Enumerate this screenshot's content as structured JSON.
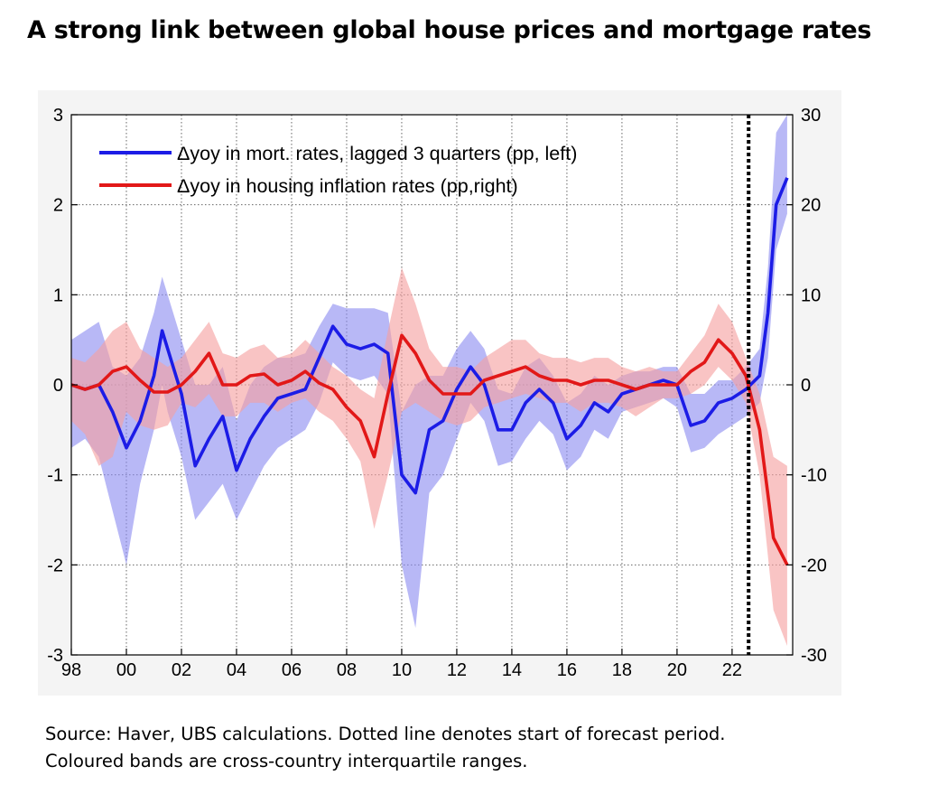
{
  "header": {
    "title": "A strong link between global house prices and mortgage rates"
  },
  "footer": {
    "source_line1": "Source: Haver, UBS calculations. Dotted line denotes start of forecast period.",
    "source_line2": "Coloured bands are cross-country interquartile ranges."
  },
  "chart_data": {
    "type": "line",
    "title": "A strong link between global house prices and mortgage rates",
    "x_tick_labels": [
      "98",
      "00",
      "02",
      "04",
      "06",
      "08",
      "10",
      "12",
      "14",
      "16",
      "18",
      "20",
      "22"
    ],
    "x_ticks": [
      1998,
      2000,
      2002,
      2004,
      2006,
      2008,
      2010,
      2012,
      2014,
      2016,
      2018,
      2020,
      2022
    ],
    "xlim": [
      1998,
      2024.2
    ],
    "y_left": {
      "lim": [
        -3,
        3
      ],
      "ticks": [
        -3,
        -2,
        -1,
        0,
        1,
        2,
        3
      ],
      "tick_labels": [
        "-3",
        "-2",
        "-1",
        "0",
        "1",
        "2",
        "3"
      ]
    },
    "y_right": {
      "lim": [
        -30,
        30
      ],
      "ticks": [
        -30,
        -20,
        -10,
        0,
        10,
        20,
        30
      ],
      "tick_labels": [
        "-30",
        "-20",
        "-10",
        "0",
        "10",
        "20",
        "30"
      ]
    },
    "grid": true,
    "legend_position": "top-left",
    "forecast_start_x": 2022.6,
    "series": [
      {
        "name": "Δyoy in mort. rates, lagged 3 quarters (pp, left)",
        "axis": "left",
        "color": "#1c1ce6",
        "band_color": "#8c8cf0",
        "x": [
          1998,
          1998.5,
          1999,
          1999.5,
          2000,
          2000.5,
          2001,
          2001.3,
          2001.5,
          2002,
          2002.5,
          2003,
          2003.5,
          2004,
          2004.5,
          2005,
          2005.5,
          2006,
          2006.5,
          2007,
          2007.5,
          2008,
          2008.5,
          2009,
          2009.5,
          2010,
          2010.5,
          2011,
          2011.5,
          2012,
          2012.5,
          2013,
          2013.5,
          2014,
          2014.5,
          2015,
          2015.5,
          2016,
          2016.5,
          2017,
          2017.5,
          2018,
          2018.5,
          2019,
          2019.5,
          2020,
          2020.5,
          2021,
          2021.5,
          2022,
          2022.5,
          2023,
          2023.3,
          2023.6,
          2024
        ],
        "y": [
          0.0,
          -0.05,
          0.0,
          -0.3,
          -0.7,
          -0.4,
          0.1,
          0.6,
          0.4,
          -0.1,
          -0.9,
          -0.6,
          -0.35,
          -0.95,
          -0.6,
          -0.35,
          -0.15,
          -0.1,
          -0.05,
          0.3,
          0.65,
          0.45,
          0.4,
          0.45,
          0.35,
          -1.0,
          -1.2,
          -0.5,
          -0.4,
          -0.05,
          0.2,
          0.0,
          -0.5,
          -0.5,
          -0.2,
          -0.05,
          -0.2,
          -0.6,
          -0.45,
          -0.2,
          -0.3,
          -0.1,
          -0.05,
          0.0,
          0.05,
          0.0,
          -0.45,
          -0.4,
          -0.2,
          -0.15,
          -0.05,
          0.1,
          0.8,
          2.0,
          2.3
        ],
        "band_low": [
          -0.7,
          -0.6,
          -0.8,
          -1.4,
          -2.0,
          -1.1,
          -0.5,
          0.0,
          -0.3,
          -0.8,
          -1.5,
          -1.3,
          -1.1,
          -1.5,
          -1.2,
          -0.9,
          -0.7,
          -0.6,
          -0.5,
          -0.2,
          0.25,
          0.1,
          0.05,
          0.1,
          -0.1,
          -2.0,
          -2.7,
          -1.2,
          -1.0,
          -0.6,
          -0.2,
          -0.4,
          -0.9,
          -0.85,
          -0.6,
          -0.4,
          -0.55,
          -0.95,
          -0.8,
          -0.5,
          -0.6,
          -0.3,
          -0.25,
          -0.2,
          -0.15,
          -0.25,
          -0.75,
          -0.7,
          -0.55,
          -0.45,
          -0.35,
          -0.2,
          0.3,
          1.5,
          1.9
        ],
        "band_high": [
          0.5,
          0.6,
          0.7,
          0.2,
          0.1,
          0.3,
          0.8,
          1.2,
          1.0,
          0.5,
          0.0,
          0.0,
          0.2,
          -0.4,
          0.0,
          0.2,
          0.3,
          0.3,
          0.35,
          0.65,
          0.9,
          0.85,
          0.85,
          0.85,
          0.8,
          -0.3,
          0.0,
          0.1,
          0.1,
          0.4,
          0.6,
          0.4,
          -0.05,
          -0.1,
          0.2,
          0.3,
          0.1,
          -0.2,
          -0.1,
          0.1,
          0.0,
          0.1,
          0.15,
          0.15,
          0.2,
          0.2,
          -0.1,
          -0.1,
          0.05,
          0.05,
          0.2,
          0.4,
          1.3,
          2.8,
          3.0
        ]
      },
      {
        "name": "Δyoy in housing inflation rates (pp,right)",
        "axis": "right",
        "color": "#e21818",
        "band_color": "#f5a0a0",
        "x": [
          1998,
          1998.5,
          1999,
          1999.5,
          2000,
          2000.5,
          2001,
          2001.5,
          2002,
          2002.5,
          2003,
          2003.5,
          2004,
          2004.5,
          2005,
          2005.5,
          2006,
          2006.5,
          2007,
          2007.5,
          2008,
          2008.5,
          2009,
          2009.5,
          2010,
          2010.5,
          2011,
          2011.5,
          2012,
          2012.5,
          2013,
          2013.5,
          2014,
          2014.5,
          2015,
          2015.5,
          2016,
          2016.5,
          2017,
          2017.5,
          2018,
          2018.5,
          2019,
          2019.5,
          2020,
          2020.5,
          2021,
          2021.5,
          2022,
          2022.5,
          2023,
          2023.5,
          2024
        ],
        "y": [
          0.0,
          -0.5,
          0.0,
          1.5,
          2.0,
          0.5,
          -0.8,
          -0.8,
          0.0,
          1.5,
          3.5,
          0.0,
          0.0,
          1.0,
          1.2,
          0.0,
          0.5,
          1.5,
          0.2,
          -0.5,
          -2.5,
          -4.0,
          -8.0,
          -1.0,
          5.5,
          3.5,
          0.5,
          -1.0,
          -1.0,
          -1.0,
          0.5,
          1.0,
          1.5,
          2.0,
          1.0,
          0.5,
          0.5,
          0.0,
          0.5,
          0.5,
          0.0,
          -0.5,
          0.0,
          0.0,
          0.0,
          1.5,
          2.5,
          5.0,
          3.5,
          1.0,
          -5.0,
          -17.0,
          -20.0
        ],
        "band_low": [
          -4.0,
          -5.5,
          -9.0,
          -8.0,
          -3.0,
          -4.5,
          -5.0,
          -4.5,
          -2.0,
          -2.5,
          -1.0,
          -3.5,
          -3.5,
          -2.0,
          -2.0,
          -3.0,
          -2.0,
          -1.5,
          -3.0,
          -4.0,
          -6.0,
          -8.5,
          -16.0,
          -10.0,
          -3.0,
          -2.0,
          -3.0,
          -4.0,
          -4.5,
          -4.0,
          -2.5,
          -2.0,
          -1.5,
          -1.0,
          -1.5,
          -2.0,
          -2.0,
          -3.0,
          -2.0,
          -2.0,
          -2.5,
          -3.5,
          -2.5,
          -1.5,
          -1.5,
          -1.0,
          0.0,
          2.0,
          0.5,
          -2.0,
          -10.0,
          -25.0,
          -29.0
        ],
        "band_high": [
          3.0,
          2.5,
          4.0,
          6.0,
          7.0,
          4.0,
          3.0,
          2.0,
          3.0,
          5.0,
          7.0,
          3.5,
          3.0,
          4.0,
          4.5,
          3.0,
          3.5,
          5.0,
          3.5,
          2.0,
          1.0,
          -0.5,
          -1.5,
          6.0,
          13.0,
          9.0,
          4.0,
          2.0,
          2.0,
          1.5,
          3.0,
          4.0,
          5.0,
          5.0,
          3.5,
          3.0,
          3.0,
          2.5,
          3.0,
          3.0,
          2.0,
          1.5,
          2.0,
          1.5,
          1.5,
          3.5,
          5.5,
          9.0,
          7.0,
          3.0,
          -1.0,
          -8.0,
          -9.0
        ]
      }
    ]
  }
}
